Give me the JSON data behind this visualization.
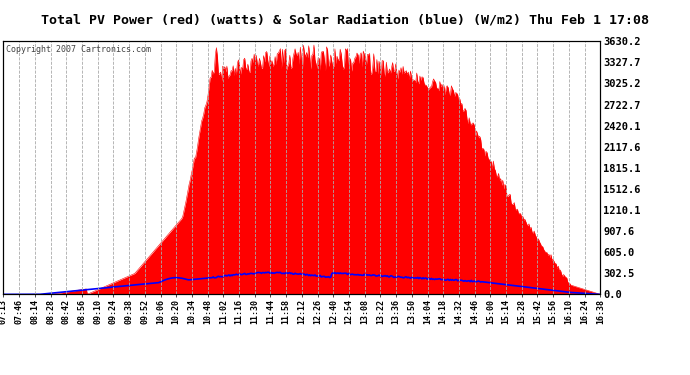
{
  "title": "Total PV Power (red) (watts) & Solar Radiation (blue) (W/m2) Thu Feb 1 17:08",
  "copyright": "Copyright 2007 Cartronics.com",
  "yticks": [
    0.0,
    302.5,
    605.0,
    907.6,
    1210.1,
    1512.6,
    1815.1,
    2117.6,
    2420.1,
    2722.7,
    3025.2,
    3327.7,
    3630.2
  ],
  "ymax": 3630.2,
  "ymin": 0.0,
  "bg_color": "#ffffff",
  "plot_bg_color": "#ffffff",
  "grid_color": "#aaaaaa",
  "title_color": "#000000",
  "pv_color": "#ff0000",
  "solar_color": "#0000ff",
  "xtick_labels": [
    "07:13",
    "07:46",
    "08:14",
    "08:28",
    "08:42",
    "08:56",
    "09:10",
    "09:24",
    "09:38",
    "09:52",
    "10:06",
    "10:20",
    "10:34",
    "10:48",
    "11:02",
    "11:16",
    "11:30",
    "11:44",
    "11:58",
    "12:12",
    "12:26",
    "12:40",
    "12:54",
    "13:08",
    "13:22",
    "13:36",
    "13:50",
    "14:04",
    "14:18",
    "14:32",
    "14:46",
    "15:00",
    "15:14",
    "15:28",
    "15:42",
    "15:56",
    "16:10",
    "16:24",
    "16:38"
  ],
  "n_points": 570,
  "pv_peak": 3550,
  "solar_peak": 310
}
